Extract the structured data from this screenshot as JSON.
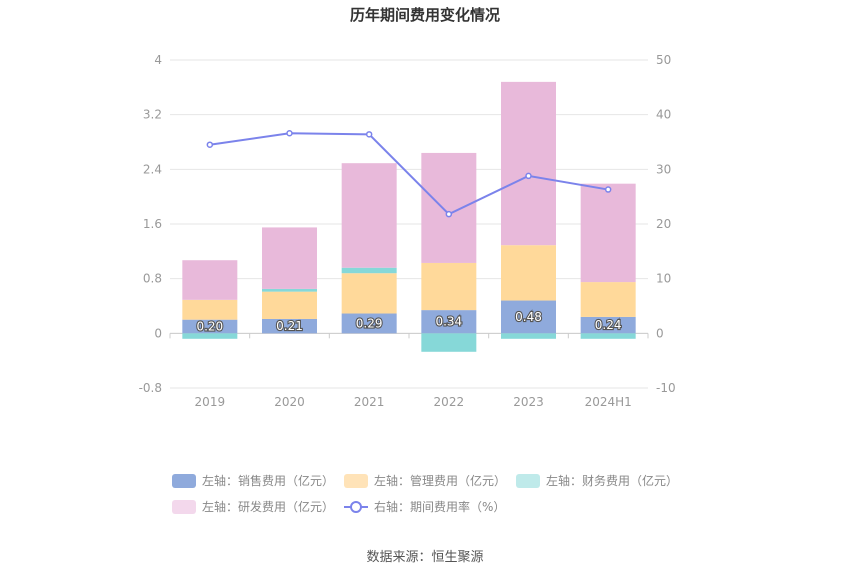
{
  "chart_data": {
    "type": "bar",
    "title": "历年期间费用变化情况",
    "categories": [
      "2019",
      "2020",
      "2021",
      "2022",
      "2023",
      "2024H1"
    ],
    "series": [
      {
        "name": "左轴：销售费用（亿元）",
        "axis": "left",
        "color": "#8FAADC",
        "values": [
          0.2,
          0.21,
          0.29,
          0.34,
          0.48,
          0.24
        ],
        "labels": [
          "0.20",
          "0.21",
          "0.29",
          "0.34",
          "0.48",
          "0.24"
        ]
      },
      {
        "name": "左轴：管理费用（亿元）",
        "axis": "left",
        "color": "#FFD99A",
        "values": [
          0.29,
          0.4,
          0.59,
          0.69,
          0.81,
          0.51
        ]
      },
      {
        "name": "左轴：财务费用（亿元）",
        "axis": "left",
        "color": "#86D8D8",
        "values": [
          -0.08,
          0.04,
          0.08,
          -0.27,
          -0.08,
          -0.08
        ]
      },
      {
        "name": "左轴：研发费用（亿元）",
        "axis": "left",
        "color": "#E8B9DA",
        "values": [
          0.58,
          0.9,
          1.53,
          1.61,
          2.39,
          1.44
        ]
      },
      {
        "name": "右轴：期间费用率（%）",
        "axis": "right",
        "type": "line",
        "color": "#7B83EB",
        "values": [
          34.5,
          36.6,
          36.4,
          21.8,
          28.8,
          26.3
        ]
      }
    ],
    "left_axis": {
      "ylim": [
        -0.8,
        4
      ],
      "ticks": [
        "-0.8",
        "0",
        "0.8",
        "1.6",
        "2.4",
        "3.2",
        "4"
      ]
    },
    "right_axis": {
      "ylim": [
        -10,
        50
      ],
      "ticks": [
        "-10",
        "0",
        "10",
        "20",
        "30",
        "40",
        "50"
      ]
    },
    "grid": true,
    "legend_position": "bottom"
  },
  "legend": [
    {
      "label": "左轴：销售费用（亿元）",
      "color": "#8FAADC",
      "kind": "box"
    },
    {
      "label": "左轴：管理费用（亿元）",
      "color": "#FFE3B8",
      "kind": "box"
    },
    {
      "label": "左轴：财务费用（亿元）",
      "color": "#BFEAEA",
      "kind": "box"
    },
    {
      "label": "左轴：研发费用（亿元）",
      "color": "#F3D8EC",
      "kind": "box"
    },
    {
      "label": "右轴：期间费用率（%）",
      "color": "#7B83EB",
      "kind": "line"
    }
  ],
  "source": "数据来源：恒生聚源"
}
